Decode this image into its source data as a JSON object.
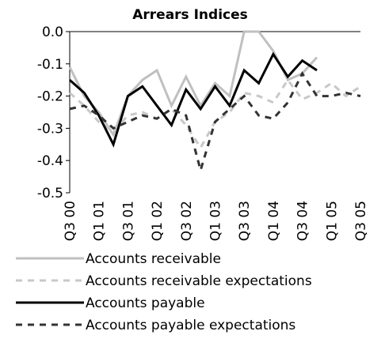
{
  "chart_data": {
    "type": "line",
    "title": "Arrears Indices",
    "categories": [
      "Q3 00",
      null,
      "Q1 01",
      null,
      "Q3 01",
      null,
      "Q1 02",
      null,
      "Q3 02",
      null,
      "Q1 03",
      null,
      "Q3 03",
      null,
      "Q1 04",
      null,
      "Q3 04",
      null,
      "Q1 05",
      null,
      "Q3 05"
    ],
    "series": [
      {
        "name": "Accounts receivable",
        "color": "#c0c0c0",
        "dashed": false,
        "values": [
          -0.11,
          -0.2,
          -0.25,
          -0.32,
          -0.2,
          -0.15,
          -0.12,
          -0.23,
          -0.14,
          -0.23,
          -0.16,
          -0.2,
          0.0,
          0.0,
          -0.06,
          -0.15,
          -0.13,
          -0.08,
          null,
          null,
          null
        ]
      },
      {
        "name": "Accounts receivable expectations",
        "color": "#c8c8c8",
        "dashed": true,
        "values": [
          -0.19,
          -0.23,
          -0.28,
          -0.31,
          -0.26,
          -0.25,
          -0.27,
          -0.24,
          -0.29,
          -0.36,
          -0.28,
          -0.25,
          -0.19,
          -0.2,
          -0.22,
          -0.15,
          -0.21,
          -0.19,
          -0.16,
          -0.2,
          -0.17
        ]
      },
      {
        "name": "Accounts payable",
        "color": "#000000",
        "dashed": false,
        "values": [
          -0.15,
          -0.19,
          -0.26,
          -0.35,
          -0.2,
          -0.17,
          -0.23,
          -0.29,
          -0.18,
          -0.24,
          -0.17,
          -0.23,
          -0.12,
          -0.16,
          -0.07,
          -0.14,
          -0.09,
          -0.12,
          null,
          null,
          null
        ]
      },
      {
        "name": "Accounts payable expectations",
        "color": "#333333",
        "dashed": true,
        "values": [
          -0.24,
          -0.23,
          -0.26,
          -0.3,
          -0.28,
          -0.26,
          -0.27,
          -0.24,
          -0.26,
          -0.43,
          -0.28,
          -0.24,
          -0.2,
          -0.26,
          -0.27,
          -0.22,
          -0.13,
          -0.2,
          -0.2,
          -0.19,
          -0.2
        ]
      }
    ],
    "ylim": [
      -0.5,
      0
    ],
    "yticks": [
      {
        "value": 0,
        "label": "0.0"
      },
      -0.1,
      -0.2,
      -0.3,
      -0.4,
      -0.5
    ]
  }
}
